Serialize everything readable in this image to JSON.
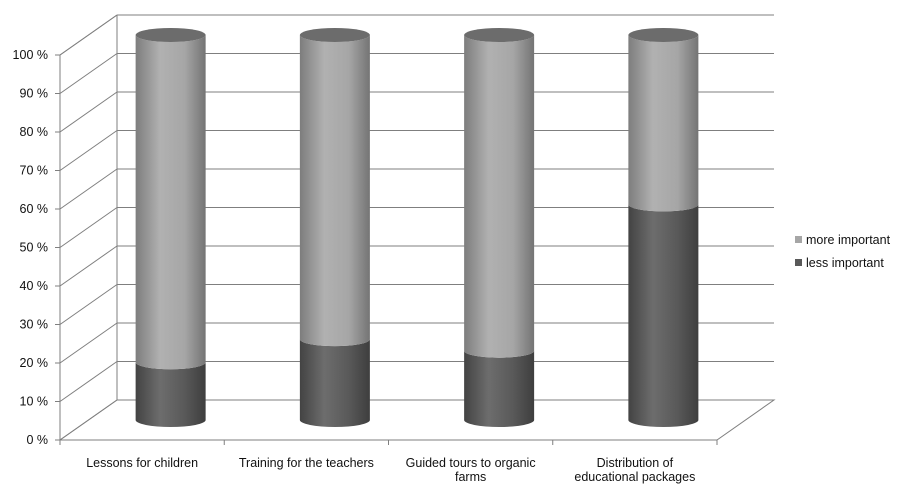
{
  "chart_data": {
    "type": "bar",
    "stacked": true,
    "percent": true,
    "style": "3d-cylinder",
    "title": "",
    "xlabel": "",
    "ylabel": "",
    "ylim": [
      0,
      100
    ],
    "yticks": [
      0,
      10,
      20,
      30,
      40,
      50,
      60,
      70,
      80,
      90,
      100
    ],
    "ytick_labels": [
      "0 %",
      "10 %",
      "20 %",
      "30 %",
      "40 %",
      "50 %",
      "60 %",
      "70 %",
      "80 %",
      "90 %",
      "100 %"
    ],
    "grid": true,
    "legend_position": "right",
    "categories": [
      [
        "Lessons for children"
      ],
      [
        "Training for the teachers"
      ],
      [
        "Guided tours to organic",
        "farms"
      ],
      [
        "Distribution of",
        "educational packages"
      ]
    ],
    "series": [
      {
        "name": "less important",
        "color": "#595959",
        "values": [
          15,
          21,
          18,
          56
        ]
      },
      {
        "name": "more important",
        "color": "#a6a6a6",
        "values": [
          85,
          79,
          82,
          44
        ]
      }
    ],
    "legend_order": [
      "more important",
      "less important"
    ]
  }
}
